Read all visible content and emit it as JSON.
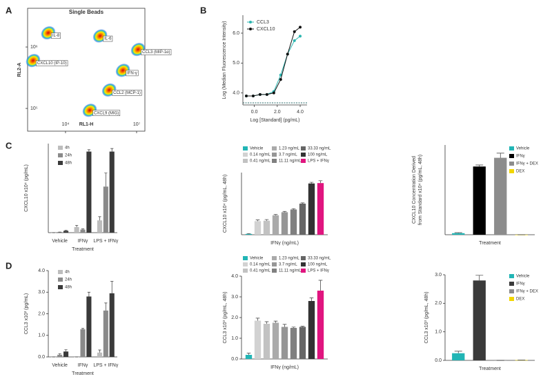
{
  "panel_labels": [
    "A",
    "B",
    "C",
    "D"
  ],
  "chart_data": [
    {
      "type": "density",
      "title": "Single Beads",
      "xlabel": "RL1-H",
      "ylabel": "RL2-A",
      "log_scale": true,
      "xlim": [
        2.4,
        7.35
      ],
      "ylim": [
        4.63,
        6.63
      ],
      "xticks": [
        {
          "value": 4,
          "label": "10⁴"
        },
        {
          "value": 7,
          "label": "10⁷"
        }
      ],
      "yticks": [
        {
          "value": 5,
          "label": "10⁵"
        },
        {
          "value": 6,
          "label": "10⁶"
        }
      ],
      "populations": [
        {
          "label": "IL-8",
          "x": 3.27,
          "y": 6.23
        },
        {
          "label": "IL-6",
          "x": 5.46,
          "y": 6.18
        },
        {
          "label": "CCL3 (MIP-1α)",
          "x": 7.06,
          "y": 5.96
        },
        {
          "label": "IFN-γ",
          "x": 6.42,
          "y": 5.62
        },
        {
          "label": "CXCL10 (IP-10)",
          "x": 2.63,
          "y": 5.78
        },
        {
          "label": "CCL2 (MCP-1)",
          "x": 5.84,
          "y": 5.3
        },
        {
          "label": "CXCL9 (MIG)",
          "x": 5.02,
          "y": 4.97
        }
      ]
    },
    {
      "type": "line",
      "xlabel": "Log [Standard] (pg/mL)",
      "ylabel": "Log (Median Fluorescence Intensity)",
      "x": [
        -0.7,
        -0.1,
        0.5,
        1.1,
        1.7,
        2.3,
        2.9,
        3.5,
        4.0
      ],
      "xlim": [
        -1,
        4.6
      ],
      "ylim": [
        3.6,
        6.6
      ],
      "xticks": [
        {
          "value": 0,
          "label": "0.0"
        },
        {
          "value": 2,
          "label": "2.0"
        },
        {
          "value": 4,
          "label": "4.0"
        }
      ],
      "yticks": [
        {
          "value": 4,
          "label": "4.0"
        },
        {
          "value": 5,
          "label": "5.0"
        },
        {
          "value": 6,
          "label": "6.0"
        }
      ],
      "legend": "upper left",
      "series": [
        {
          "name": "CCL3",
          "color": "#2bb5b0",
          "values": [
            3.9,
            3.9,
            3.95,
            3.95,
            4.05,
            4.6,
            5.3,
            5.75,
            5.9
          ]
        },
        {
          "name": "CXCL10",
          "color": "#111111",
          "values": [
            3.9,
            3.9,
            3.95,
            3.95,
            4.0,
            4.45,
            5.3,
            6.05,
            6.2
          ]
        }
      ]
    },
    {
      "type": "bar",
      "ylabel": "CXCL10 x10⁴ (pg/mL)",
      "xlabel": "Treatment",
      "categories": [
        "Vehicle",
        "IFNγ",
        "LPS + IFNγ"
      ],
      "ylim": [
        0,
        1.45
      ],
      "legend": "upper left",
      "series": [
        {
          "name": "4h",
          "color": "#bdbdbd",
          "values": [
            0,
            0.09,
            0.2
          ],
          "errors": [
            0,
            0.03,
            0.06
          ]
        },
        {
          "name": "24h",
          "color": "#8a8a8a",
          "values": [
            0.01,
            0.05,
            0.75
          ],
          "errors": [
            0,
            0.01,
            0.22
          ]
        },
        {
          "name": "48h",
          "color": "#3a3a3a",
          "values": [
            0.03,
            1.32,
            1.32
          ],
          "errors": [
            0.01,
            0.03,
            0.05
          ]
        }
      ]
    },
    {
      "type": "bar",
      "ylabel": "CXCL10 x10⁴ (pg/mL, 48h)",
      "xlabel": "IFNγ (ng/mL)",
      "categories": [
        null
      ],
      "ylim": [
        0,
        1.6
      ],
      "legend": "top",
      "series": [
        {
          "name": "Vehicle",
          "color": "#22b5b5",
          "values": [
            0.02
          ],
          "errors": [
            0.01
          ]
        },
        {
          "name": "0.14 ng/mL",
          "color": "#d2d2d2",
          "values": [
            0.35
          ],
          "errors": [
            0.03
          ]
        },
        {
          "name": "0.41 ng/mL",
          "color": "#c2c2c2",
          "values": [
            0.36
          ],
          "errors": [
            0.03
          ]
        },
        {
          "name": "1.23 ng/mL",
          "color": "#aaaaaa",
          "values": [
            0.5
          ],
          "errors": [
            0.02
          ]
        },
        {
          "name": "3.7 ng/mL",
          "color": "#969696",
          "values": [
            0.58
          ],
          "errors": [
            0.02
          ]
        },
        {
          "name": "11.11 ng/mL",
          "color": "#808080",
          "values": [
            0.65
          ],
          "errors": [
            0.02
          ]
        },
        {
          "name": "33.33 ng/mL",
          "color": "#666666",
          "values": [
            0.8
          ],
          "errors": [
            0.02
          ]
        },
        {
          "name": "100 ng/mL",
          "color": "#333333",
          "values": [
            1.32
          ],
          "errors": [
            0.03
          ]
        },
        {
          "name": "LPS + IFNγ",
          "color": "#e0157f",
          "values": [
            1.33
          ],
          "errors": [
            0.06
          ]
        }
      ]
    },
    {
      "type": "bar",
      "ylabel": "CXCL10 Concentration Derived from Standard x10⁴ (pg/mL, 48h)",
      "xlabel": "Treatment",
      "categories": [
        null
      ],
      "ylim": [
        0,
        1.75
      ],
      "legend": "upper right",
      "series": [
        {
          "name": "Vehicle",
          "color": "#22b5b5",
          "values": [
            0.03
          ],
          "errors": [
            0.01
          ]
        },
        {
          "name": "IFNγ",
          "color": "#000000",
          "values": [
            1.33
          ],
          "errors": [
            0.03
          ]
        },
        {
          "name": "IFNγ + DEX",
          "color": "#8c8c8c",
          "values": [
            1.5
          ],
          "errors": [
            0.09
          ]
        },
        {
          "name": "DEX",
          "color": "#f2d600",
          "values": [
            0
          ],
          "errors": [
            0
          ]
        }
      ]
    },
    {
      "type": "bar",
      "ylabel": "CCL3 x10³ (pg/mL)",
      "xlabel": "Treatment",
      "categories": [
        "Vehicle",
        "IFNγ",
        "LPS + IFNγ"
      ],
      "ylim": [
        0,
        4
      ],
      "yticks": [
        {
          "value": 0,
          "label": "0.0"
        },
        {
          "value": 1,
          "label": "1.0"
        },
        {
          "value": 2,
          "label": "2.0"
        },
        {
          "value": 3,
          "label": "3.0"
        },
        {
          "value": 4,
          "label": "4.0"
        }
      ],
      "legend": "upper left",
      "series": [
        {
          "name": "4h",
          "color": "#bdbdbd",
          "values": [
            0,
            0,
            0.2
          ],
          "errors": [
            0,
            0,
            0.12
          ]
        },
        {
          "name": "24h",
          "color": "#8a8a8a",
          "values": [
            0.1,
            1.28,
            2.15
          ],
          "errors": [
            0.05,
            0.04,
            0.35
          ]
        },
        {
          "name": "48h",
          "color": "#3a3a3a",
          "values": [
            0.25,
            2.8,
            2.95
          ],
          "errors": [
            0.08,
            0.2,
            0.55
          ]
        }
      ]
    },
    {
      "type": "bar",
      "ylabel": "CCL3 x10³ (pg/mL, 48h)",
      "xlabel": "IFNγ (ng/mL)",
      "categories": [
        null
      ],
      "ylim": [
        0,
        4
      ],
      "yticks": [
        {
          "value": 0,
          "label": "0.0"
        },
        {
          "value": 1,
          "label": "1.0"
        },
        {
          "value": 2,
          "label": "2.0"
        },
        {
          "value": 3,
          "label": "3.0"
        },
        {
          "value": 4,
          "label": "4.0"
        }
      ],
      "legend": "top",
      "series": [
        {
          "name": "Vehicle",
          "color": "#22b5b5",
          "values": [
            0.2
          ],
          "errors": [
            0.08
          ]
        },
        {
          "name": "0.14 ng/mL",
          "color": "#d2d2d2",
          "values": [
            1.85
          ],
          "errors": [
            0.12
          ]
        },
        {
          "name": "0.41 ng/mL",
          "color": "#c2c2c2",
          "values": [
            1.7
          ],
          "errors": [
            0.1
          ]
        },
        {
          "name": "1.23 ng/mL",
          "color": "#aaaaaa",
          "values": [
            1.75
          ],
          "errors": [
            0.08
          ]
        },
        {
          "name": "3.7 ng/mL",
          "color": "#969696",
          "values": [
            1.55
          ],
          "errors": [
            0.12
          ]
        },
        {
          "name": "11.11 ng/mL",
          "color": "#808080",
          "values": [
            1.5
          ],
          "errors": [
            0.04
          ]
        },
        {
          "name": "33.33 ng/mL",
          "color": "#666666",
          "values": [
            1.55
          ],
          "errors": [
            0.03
          ]
        },
        {
          "name": "100 ng/mL",
          "color": "#333333",
          "values": [
            2.8
          ],
          "errors": [
            0.15
          ]
        },
        {
          "name": "LPS + IFNγ",
          "color": "#e0157f",
          "values": [
            3.3
          ],
          "errors": [
            0.5
          ]
        }
      ]
    },
    {
      "type": "bar",
      "ylabel": "CCL3 x10³ (pg/mL, 48h)",
      "xlabel": "Treatment",
      "categories": [
        null
      ],
      "ylim": [
        0,
        3
      ],
      "yticks": [
        {
          "value": 0,
          "label": "0.0"
        },
        {
          "value": 1,
          "label": "1.0"
        },
        {
          "value": 2,
          "label": "2.0"
        },
        {
          "value": 3,
          "label": "3.0"
        }
      ],
      "legend": "upper right",
      "series": [
        {
          "name": "Vehicle",
          "color": "#22b5b5",
          "values": [
            0.25
          ],
          "errors": [
            0.07
          ]
        },
        {
          "name": "IFNγ",
          "color": "#3a3a3a",
          "values": [
            2.8
          ],
          "errors": [
            0.18
          ]
        },
        {
          "name": "IFNγ + DEX",
          "color": "#8c8c8c",
          "values": [
            0
          ],
          "errors": [
            0
          ]
        },
        {
          "name": "DEX",
          "color": "#f2d600",
          "values": [
            0.01
          ],
          "errors": [
            0
          ]
        }
      ]
    }
  ]
}
